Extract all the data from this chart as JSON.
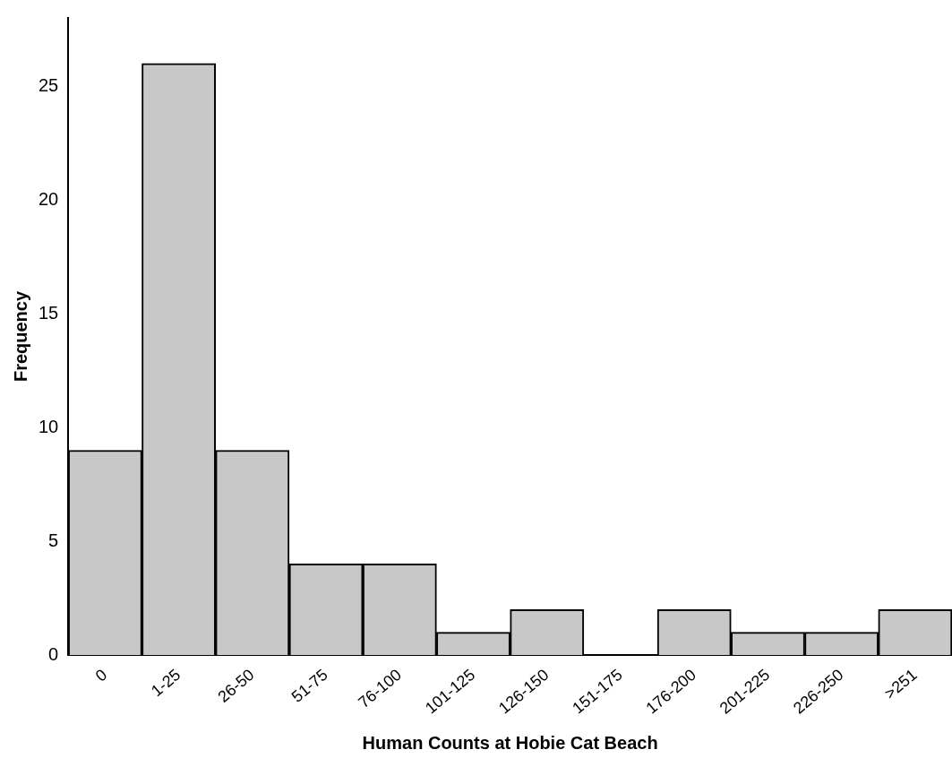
{
  "chart_data": {
    "type": "bar",
    "xlabel": "Human Counts at Hobie Cat Beach",
    "ylabel": "Frequency",
    "categories": [
      "0",
      "1-25",
      "26-50",
      "51-75",
      "76-100",
      "101-125",
      "126-150",
      "151-175",
      "176-200",
      "201-225",
      "226-250",
      ">251"
    ],
    "values": [
      9,
      26,
      9,
      4,
      4,
      1,
      2,
      0,
      2,
      1,
      1,
      2
    ],
    "color": "#c8c8c8",
    "ylim": [
      0,
      28
    ],
    "yticks": [
      0,
      5,
      10,
      15,
      20,
      25
    ],
    "grid": false
  }
}
